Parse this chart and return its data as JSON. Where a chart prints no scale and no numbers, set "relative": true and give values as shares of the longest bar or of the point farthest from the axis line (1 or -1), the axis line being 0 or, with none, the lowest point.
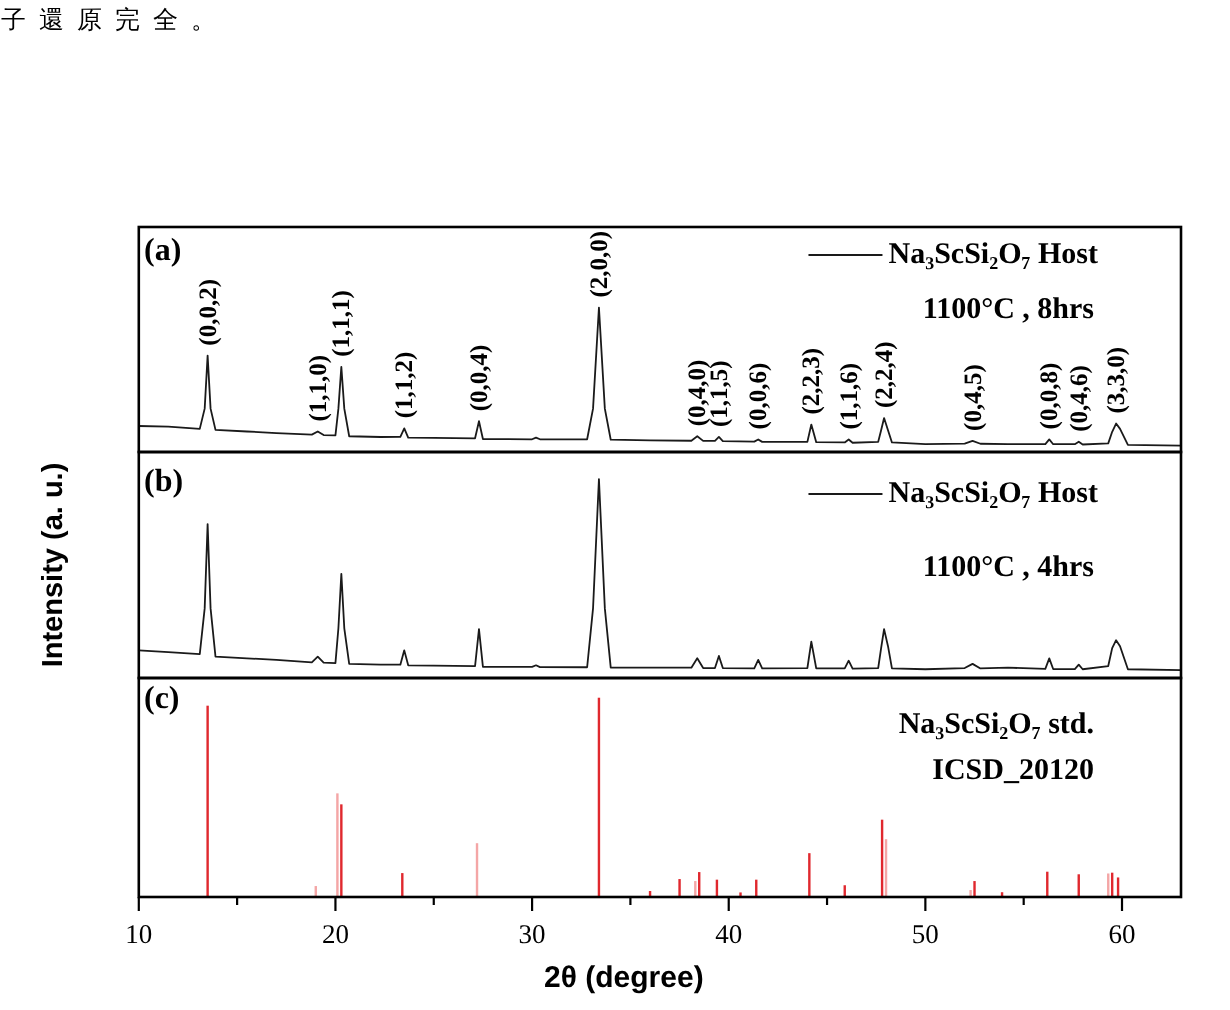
{
  "chart_data": [
    {
      "type": "other",
      "annotations": [
        "子還原完全。"
      ]
    },
    {
      "type": "line",
      "title": "(a)",
      "relative": true,
      "xlim": [
        10,
        63
      ],
      "tick_labels": false,
      "legend": "top right",
      "x": [
        10,
        11.5,
        13.1,
        13.35,
        13.5,
        13.65,
        13.9,
        15.5,
        17,
        18.8,
        19.1,
        19.4,
        20.0,
        20.15,
        20.3,
        20.45,
        20.7,
        22.3,
        23.3,
        23.5,
        23.7,
        25,
        27.1,
        27.3,
        27.5,
        30,
        30.2,
        30.4,
        32.8,
        33.1,
        33.4,
        33.7,
        34.0,
        36,
        38.1,
        38.4,
        38.7,
        39.3,
        39.5,
        39.7,
        41.3,
        41.5,
        41.7,
        44.0,
        44.2,
        44.45,
        45.9,
        46.1,
        46.3,
        47.6,
        47.75,
        47.9,
        48.1,
        48.3,
        50,
        52.0,
        52.4,
        52.8,
        54.2,
        56.1,
        56.3,
        56.5,
        57.6,
        57.8,
        58.0,
        59.3,
        59.5,
        59.7,
        59.9,
        60.3,
        63
      ],
      "series": [
        {
          "name": "Na₃ScSi₂O₇ Host",
          "color": "#1a1a1a",
          "values": [
            0.18,
            0.175,
            0.16,
            0.3,
            0.667,
            0.3,
            0.153,
            0.142,
            0.131,
            0.12,
            0.142,
            0.117,
            0.115,
            0.3,
            0.59,
            0.3,
            0.109,
            0.104,
            0.105,
            0.164,
            0.1,
            0.098,
            0.095,
            0.213,
            0.09,
            0.088,
            0.1,
            0.088,
            0.088,
            0.3,
            1,
            0.3,
            0.085,
            0.08,
            0.078,
            0.109,
            0.077,
            0.077,
            0.104,
            0.075,
            0.072,
            0.087,
            0.07,
            0.07,
            0.19,
            0.068,
            0.066,
            0.087,
            0.064,
            0.07,
            0.15,
            0.235,
            0.15,
            0.066,
            0.055,
            0.058,
            0.077,
            0.057,
            0.055,
            0.055,
            0.087,
            0.054,
            0.054,
            0.071,
            0.052,
            0.06,
            0.14,
            0.197,
            0.16,
            0.05,
            0.044
          ]
        }
      ],
      "annotations": [
        "1100°C , 8hrs",
        {
          "text": "(0,0,2)",
          "x": 13.5,
          "y": 0.667
        },
        {
          "text": "(1,1,0)",
          "x": 19.1,
          "y": 0.142
        },
        {
          "text": "(1,1,1)",
          "x": 20.3,
          "y": 0.59
        },
        {
          "text": "(1,1,2)",
          "x": 23.5,
          "y": 0.164
        },
        {
          "text": "(0,0,4)",
          "x": 27.3,
          "y": 0.213
        },
        {
          "text": "(2,0,0)",
          "x": 33.4,
          "y": 1
        },
        {
          "text": "(0,4,0)",
          "x": 38.4,
          "y": 0.109
        },
        {
          "text": "(1,1,5)",
          "x": 39.5,
          "y": 0.104
        },
        {
          "text": "(0,0,6)",
          "x": 41.5,
          "y": 0.087
        },
        {
          "text": "(2,2,3)",
          "x": 44.2,
          "y": 0.19
        },
        {
          "text": "(1,1,6)",
          "x": 46.1,
          "y": 0.087
        },
        {
          "text": "(2,2,4)",
          "x": 47.9,
          "y": 0.235
        },
        {
          "text": "(0,4,5)",
          "x": 52.4,
          "y": 0.077
        },
        {
          "text": "(0,0,8)",
          "x": 56.3,
          "y": 0.087
        },
        {
          "text": "(0,4,6)",
          "x": 57.8,
          "y": 0.071
        },
        {
          "text": "(3,3,0)",
          "x": 59.7,
          "y": 0.197
        }
      ]
    },
    {
      "type": "line",
      "title": "(b)",
      "relative": true,
      "xlim": [
        10,
        63
      ],
      "tick_labels": false,
      "legend": "top right",
      "ylabel": "Intensity (a. u.)",
      "x": [
        10,
        11.5,
        13.1,
        13.35,
        13.5,
        13.65,
        13.9,
        15.5,
        17,
        18.8,
        19.1,
        19.4,
        20.0,
        20.15,
        20.3,
        20.45,
        20.7,
        22.3,
        23.3,
        23.5,
        23.7,
        25,
        27.1,
        27.3,
        27.5,
        30,
        30.2,
        30.4,
        32.8,
        33.1,
        33.4,
        33.7,
        34.0,
        36,
        38.1,
        38.4,
        38.7,
        39.3,
        39.5,
        39.7,
        41.3,
        41.5,
        41.7,
        44.0,
        44.2,
        44.45,
        45.9,
        46.1,
        46.3,
        47.6,
        47.75,
        47.9,
        48.1,
        48.3,
        50,
        52.0,
        52.4,
        52.8,
        54.2,
        56.1,
        56.3,
        56.5,
        57.6,
        57.8,
        58.0,
        59.3,
        59.5,
        59.7,
        59.9,
        60.3,
        63
      ],
      "series": [
        {
          "name": "Na₃ScSi₂O₇ Host",
          "color": "#1a1a1a",
          "values": [
            0.139,
            0.13,
            0.12,
            0.35,
            0.774,
            0.35,
            0.107,
            0.099,
            0.091,
            0.079,
            0.107,
            0.077,
            0.075,
            0.25,
            0.524,
            0.25,
            0.071,
            0.067,
            0.067,
            0.139,
            0.064,
            0.062,
            0.06,
            0.246,
            0.056,
            0.056,
            0.064,
            0.055,
            0.054,
            0.35,
            1,
            0.35,
            0.052,
            0.052,
            0.052,
            0.099,
            0.05,
            0.05,
            0.111,
            0.05,
            0.048,
            0.091,
            0.048,
            0.05,
            0.183,
            0.048,
            0.048,
            0.087,
            0.047,
            0.05,
            0.15,
            0.246,
            0.16,
            0.048,
            0.044,
            0.05,
            0.071,
            0.048,
            0.052,
            0.046,
            0.099,
            0.045,
            0.045,
            0.067,
            0.044,
            0.06,
            0.15,
            0.19,
            0.16,
            0.044,
            0.04
          ]
        }
      ],
      "annotations": [
        "1100°C , 4hrs"
      ]
    },
    {
      "type": "bar",
      "title": "(c)",
      "relative": true,
      "xlim": [
        10,
        63
      ],
      "xticks": [
        10,
        {
          "value": 15,
          "label": null
        },
        20,
        {
          "value": 25,
          "label": null
        },
        30,
        {
          "value": 35,
          "label": null
        },
        40,
        {
          "value": 45,
          "label": null
        },
        50,
        {
          "value": 55,
          "label": null
        },
        60
      ],
      "tick_labels": "x",
      "xlabel": "2θ (degree)",
      "x": [
        13.5,
        19.0,
        20.1,
        20.3,
        23.4,
        27.2,
        33.4,
        36.0,
        37.5,
        38.3,
        38.5,
        39.4,
        40.6,
        41.4,
        44.1,
        45.9,
        47.8,
        48.0,
        52.3,
        52.5,
        53.9,
        56.2,
        57.8,
        59.3,
        59.5,
        59.8
      ],
      "values": [
        0.96,
        0.055,
        0.52,
        0.465,
        0.12,
        0.27,
        1,
        0.03,
        0.09,
        0.08,
        0.125,
        0.087,
        0.023,
        0.087,
        0.22,
        0.059,
        0.388,
        0.29,
        0.035,
        0.08,
        0.024,
        0.127,
        0.114,
        0.118,
        0.122,
        0.098
      ],
      "colors": [
        "#e0282e",
        "#f4a6a6",
        "#f4a6a6",
        "#e0282e",
        "#e0282e",
        "#f4a6a6",
        "#e0282e",
        "#e0282e",
        "#e0282e",
        "#f4a6a6",
        "#e0282e",
        "#e0282e",
        "#e0282e",
        "#e0282e",
        "#e0282e",
        "#e0282e",
        "#e0282e",
        "#f4a6a6",
        "#f4a6a6",
        "#e0282e",
        "#e0282e",
        "#e0282e",
        "#e0282e",
        "#f4a6a6",
        "#e0282e",
        "#e0282e"
      ],
      "annotations": [
        "Na₃ScSi₂O₇ std.",
        "ICSD_20120"
      ]
    }
  ]
}
